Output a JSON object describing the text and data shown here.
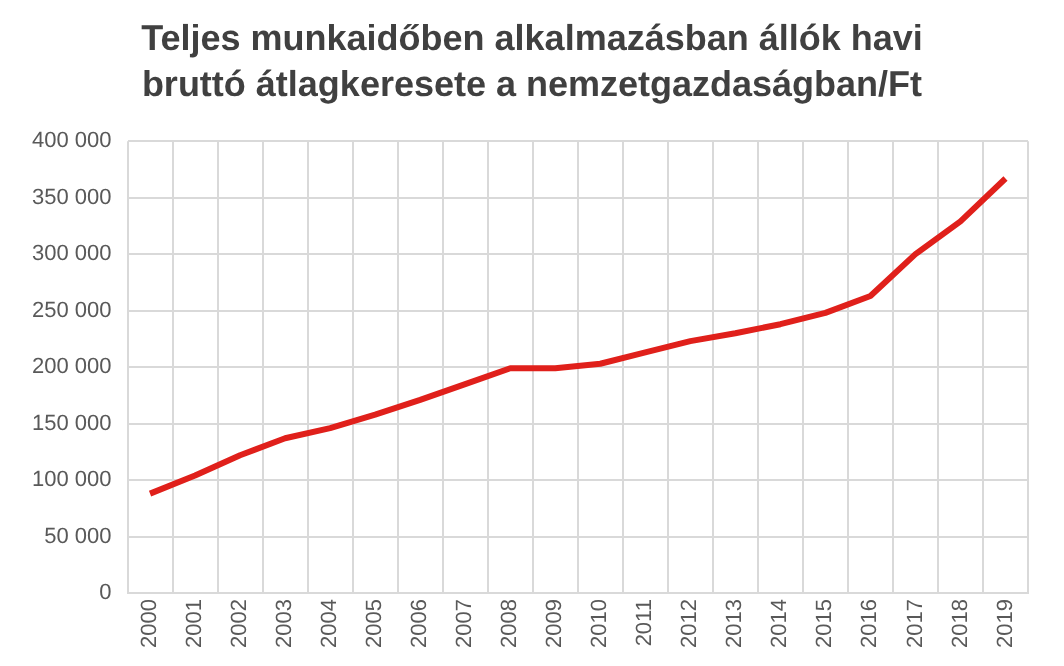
{
  "chart_data": {
    "type": "line",
    "title": "Teljes munkaidőben alkalmazásban állók havi bruttó átlagkeresete a nemzetgazdaságban/Ft",
    "categories": [
      "2000",
      "2001",
      "2002",
      "2003",
      "2004",
      "2005",
      "2006",
      "2007",
      "2008",
      "2009",
      "2010",
      "2011",
      "2012",
      "2013",
      "2014",
      "2015",
      "2016",
      "2017",
      "2018",
      "2019"
    ],
    "series": [
      {
        "color": "#e0201b",
        "values": [
          88000,
          104000,
          122000,
          137000,
          146000,
          158000,
          171000,
          185000,
          199000,
          199000,
          203000,
          213000,
          223000,
          230000,
          238000,
          248000,
          263000,
          300000,
          329000,
          367000
        ]
      }
    ],
    "ylim": [
      0,
      400000
    ],
    "yticks": [
      {
        "value": 0,
        "label": "0"
      },
      {
        "value": 50000,
        "label": "50 000"
      },
      {
        "value": 100000,
        "label": "100 000"
      },
      {
        "value": 150000,
        "label": "150 000"
      },
      {
        "value": 200000,
        "label": "200 000"
      },
      {
        "value": 250000,
        "label": "250 000"
      },
      {
        "value": 300000,
        "label": "300 000"
      },
      {
        "value": 350000,
        "label": "350 000"
      },
      {
        "value": 400000,
        "label": "400 000"
      }
    ],
    "grid": true,
    "legend": false,
    "marker": "none",
    "line_style": "solid"
  }
}
